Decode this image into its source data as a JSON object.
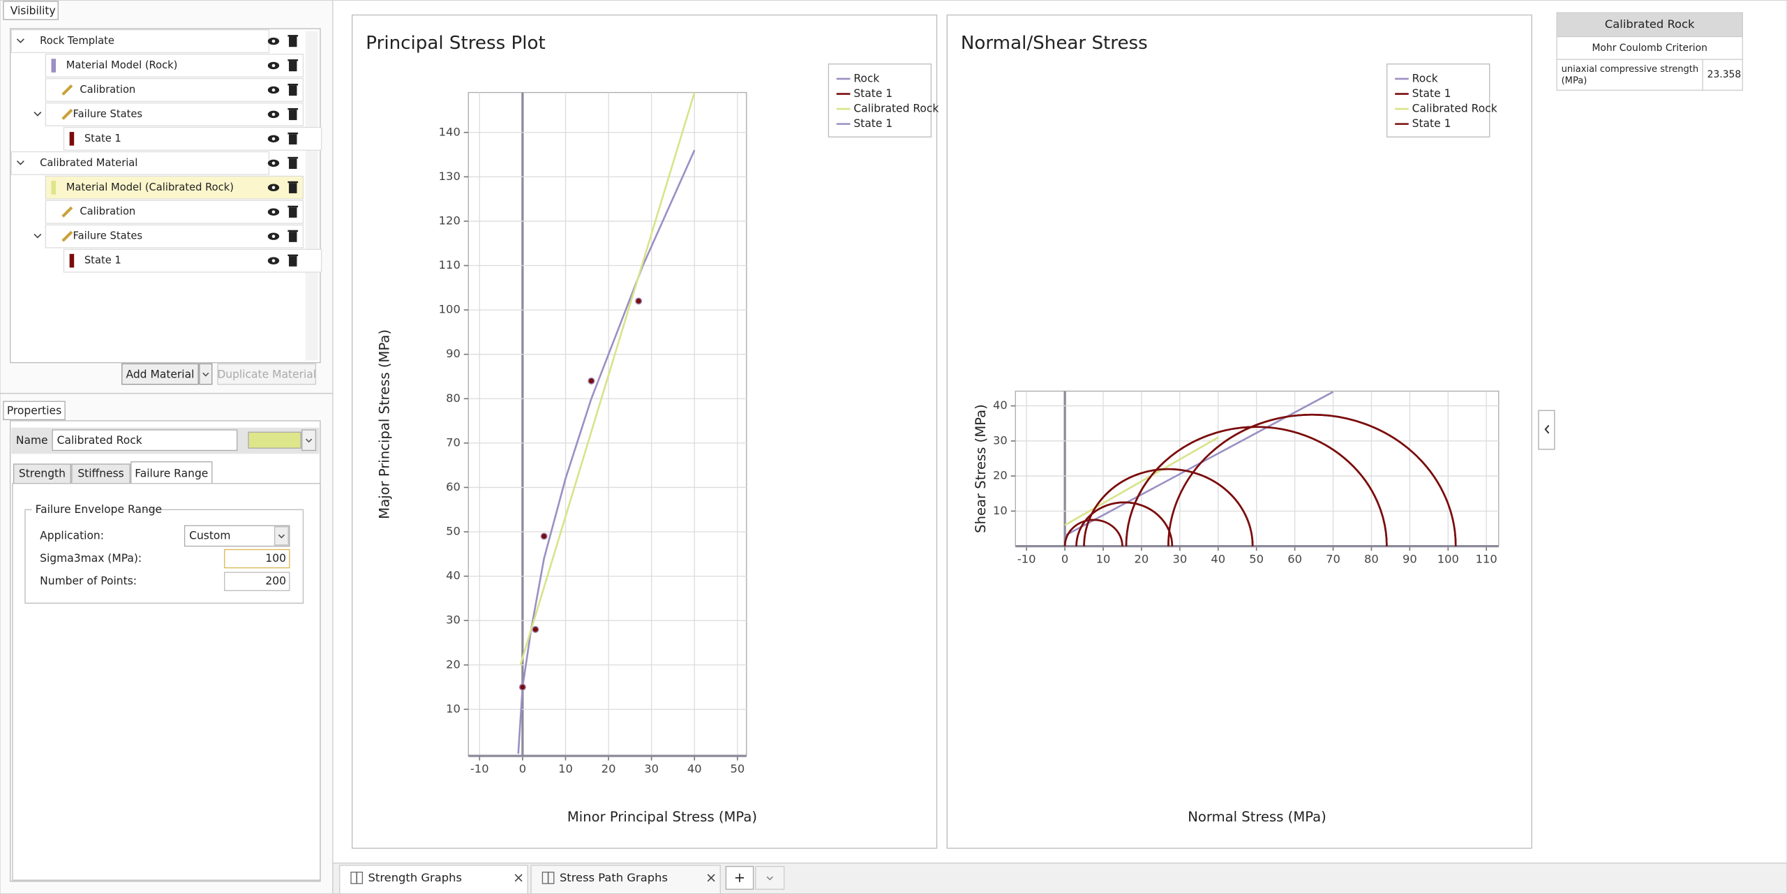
{
  "visibility": {
    "tab": "Visibility",
    "tree": [
      {
        "label": "Rock Template",
        "level": 0
      },
      {
        "label": "Material Model (Rock)",
        "level": 1,
        "color": "#9b8fc4"
      },
      {
        "label": "Calibration",
        "level": 1
      },
      {
        "label": "Failure States",
        "level": 1
      },
      {
        "label": "State 1",
        "level": 2,
        "color": "#7b0c0c"
      },
      {
        "label": "Calibrated Material",
        "level": 0
      },
      {
        "label": "Material Model (Calibrated Rock)",
        "level": 1,
        "color": "#dde68a",
        "selected": true
      },
      {
        "label": "Calibration",
        "level": 1
      },
      {
        "label": "Failure States",
        "level": 1
      },
      {
        "label": "State 1",
        "level": 2,
        "color": "#7b0c0c"
      }
    ],
    "add_button": "Add Material",
    "duplicate_button": "Duplicate Material"
  },
  "properties": {
    "tab": "Properties",
    "name_label": "Name",
    "name_value": "Calibrated Rock",
    "color": "#dde68a",
    "tabs": [
      "Strength",
      "Stiffness",
      "Failure Range"
    ],
    "group": "Failure Envelope Range",
    "fields": [
      {
        "label": "Application:",
        "value": "Custom"
      },
      {
        "label": "Sigma3max (MPa):",
        "value": "100"
      },
      {
        "label": "Number of Points:",
        "value": "200"
      }
    ]
  },
  "chart_data": [
    {
      "type": "line",
      "title": "Principal Stress Plot",
      "xlabel": "Minor Principal Stress (MPa)",
      "ylabel": "Major Principal Stress (MPa)",
      "xlim": [
        -12.6,
        52.1
      ],
      "ylim": [
        -0.5,
        149
      ],
      "xticks": [
        -10,
        0,
        10,
        20,
        30,
        40,
        50
      ],
      "yticks": [
        10,
        20,
        30,
        40,
        50,
        60,
        70,
        80,
        90,
        100,
        110,
        120,
        130,
        140
      ],
      "grid": true,
      "series": [
        {
          "name": "Rock",
          "color": "#9b8fc4",
          "type": "line",
          "x": [
            -1,
            0,
            2,
            5,
            10,
            16,
            20,
            28,
            40
          ],
          "values": [
            0,
            15,
            28,
            44,
            62,
            80,
            90,
            110,
            136
          ]
        },
        {
          "name": "State 1",
          "color": "#7b0c0c",
          "type": "scatter",
          "x": [
            0,
            3,
            5,
            16,
            27
          ],
          "values": [
            15,
            28,
            49,
            84,
            102
          ]
        },
        {
          "name": "Calibrated Rock",
          "color": "#d8e38a",
          "type": "line",
          "x": [
            -0.5,
            40
          ],
          "values": [
            20,
            149
          ]
        },
        {
          "name": "State 1",
          "color": "#9b8fc4",
          "type": "scatter",
          "x": [
            0,
            3,
            5,
            16,
            27
          ],
          "values": [
            15,
            28,
            49,
            84,
            102
          ]
        }
      ]
    },
    {
      "type": "line",
      "title": "Normal/Shear Stress",
      "xlabel": "Normal Stress (MPa)",
      "ylabel": "Shear Stress (MPa)",
      "xlim": [
        -12.9,
        113.2
      ],
      "ylim": [
        0,
        44.2
      ],
      "xticks": [
        -10,
        0,
        10,
        20,
        30,
        40,
        50,
        60,
        70,
        80,
        90,
        100,
        110
      ],
      "yticks": [
        10,
        20,
        30,
        40
      ],
      "grid": true,
      "series": [
        {
          "name": "Rock",
          "color": "#9b8fc4",
          "type": "line",
          "x": [
            0,
            70
          ],
          "values": [
            3,
            44
          ]
        },
        {
          "name": "State 1",
          "color": "#7b0c0c",
          "type": "mohr",
          "sigma3": [
            0,
            3,
            5,
            16,
            27
          ],
          "sigma1": [
            15,
            28,
            49,
            84,
            102
          ]
        },
        {
          "name": "Calibrated Rock",
          "color": "#d8e38a",
          "type": "line",
          "x": [
            0,
            40
          ],
          "values": [
            6,
            31
          ]
        },
        {
          "name": "State 1",
          "color": "#7b0c0c",
          "type": "mohr",
          "sigma3": [
            0,
            3,
            5,
            16,
            27
          ],
          "sigma1": [
            15,
            28,
            49,
            84,
            102
          ]
        }
      ]
    }
  ],
  "summary": {
    "title": "Calibrated Rock",
    "criterion": "Mohr Coulomb Criterion",
    "label": "uniaxial compressive strength (MPa)",
    "value": "23.358"
  },
  "bottom_tabs": {
    "tabs": [
      "Strength Graphs",
      "Stress Path Graphs"
    ],
    "add": "+"
  }
}
